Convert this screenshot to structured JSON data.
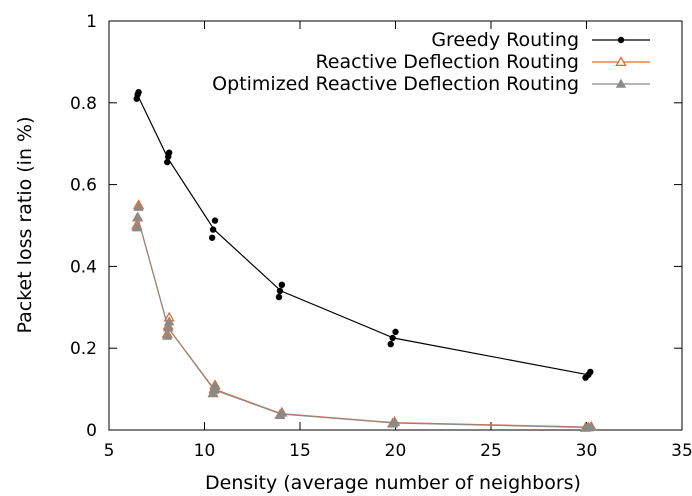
{
  "chart_data": {
    "type": "line",
    "title": "",
    "xlabel": "Density (average number of neighbors)",
    "ylabel": "Packet loss ratio (in %)",
    "xlim": [
      5,
      35
    ],
    "ylim": [
      0,
      1
    ],
    "xticks": [
      "5",
      "10",
      "15",
      "20",
      "25",
      "30",
      "35"
    ],
    "yticks": [
      "0",
      "0.2",
      "0.4",
      "0.6",
      "0.8",
      "1"
    ],
    "grid": false,
    "legend_position": "top-right",
    "series": [
      {
        "name": "Greedy Routing",
        "color": "#000000",
        "marker": "circle",
        "line": [
          [
            6.5,
            0.818
          ],
          [
            8.1,
            0.663
          ],
          [
            10.5,
            0.49
          ],
          [
            14.0,
            0.34
          ],
          [
            19.9,
            0.225
          ],
          [
            30.1,
            0.135
          ]
        ],
        "points": [
          [
            6.45,
            0.81
          ],
          [
            6.5,
            0.82
          ],
          [
            6.55,
            0.826
          ],
          [
            8.05,
            0.655
          ],
          [
            8.1,
            0.668
          ],
          [
            8.15,
            0.678
          ],
          [
            10.4,
            0.47
          ],
          [
            10.45,
            0.49
          ],
          [
            10.55,
            0.512
          ],
          [
            13.9,
            0.325
          ],
          [
            13.95,
            0.34
          ],
          [
            14.05,
            0.355
          ],
          [
            19.75,
            0.21
          ],
          [
            19.85,
            0.225
          ],
          [
            20.0,
            0.24
          ],
          [
            29.95,
            0.128
          ],
          [
            30.1,
            0.135
          ],
          [
            30.2,
            0.142
          ]
        ]
      },
      {
        "name": "Reactive Deflection Routing",
        "color": "#e8672a",
        "marker": "triangle-open",
        "line": [
          [
            6.5,
            0.52
          ],
          [
            8.1,
            0.25
          ],
          [
            10.5,
            0.1
          ],
          [
            14.0,
            0.04
          ],
          [
            19.9,
            0.018
          ],
          [
            30.1,
            0.007
          ]
        ],
        "points": [
          [
            6.45,
            0.5
          ],
          [
            6.5,
            0.52
          ],
          [
            6.55,
            0.55
          ],
          [
            8.05,
            0.235
          ],
          [
            8.1,
            0.255
          ],
          [
            8.15,
            0.275
          ],
          [
            10.45,
            0.09
          ],
          [
            10.5,
            0.1
          ],
          [
            10.55,
            0.11
          ],
          [
            13.95,
            0.037
          ],
          [
            14.05,
            0.043
          ],
          [
            19.85,
            0.016
          ],
          [
            19.95,
            0.02
          ],
          [
            29.95,
            0.006
          ],
          [
            30.1,
            0.007
          ],
          [
            30.25,
            0.008
          ]
        ]
      },
      {
        "name": "Optimized Reactive Deflection Routing",
        "color": "#8a8a8a",
        "marker": "triangle",
        "line": [
          [
            6.5,
            0.52
          ],
          [
            8.1,
            0.25
          ],
          [
            10.5,
            0.098
          ],
          [
            14.0,
            0.039
          ],
          [
            19.9,
            0.017
          ],
          [
            30.1,
            0.006
          ]
        ],
        "points": [
          [
            6.45,
            0.495
          ],
          [
            6.5,
            0.52
          ],
          [
            6.55,
            0.545
          ],
          [
            8.05,
            0.23
          ],
          [
            8.1,
            0.25
          ],
          [
            8.15,
            0.265
          ],
          [
            10.45,
            0.09
          ],
          [
            10.5,
            0.098
          ],
          [
            10.55,
            0.107
          ],
          [
            13.95,
            0.036
          ],
          [
            14.05,
            0.042
          ],
          [
            19.85,
            0.015
          ],
          [
            19.95,
            0.019
          ],
          [
            29.95,
            0.005
          ],
          [
            30.1,
            0.006
          ],
          [
            30.25,
            0.007
          ]
        ]
      }
    ]
  }
}
